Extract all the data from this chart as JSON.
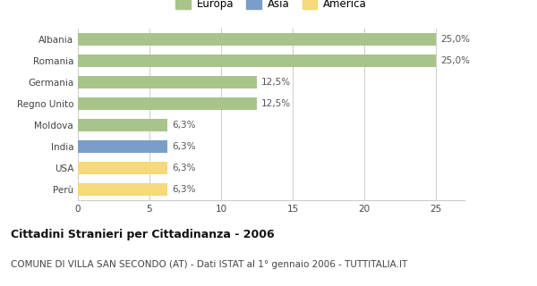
{
  "categories": [
    "Perù",
    "USA",
    "India",
    "Moldova",
    "Regno Unito",
    "Germania",
    "Romania",
    "Albania"
  ],
  "values": [
    6.25,
    6.25,
    6.25,
    6.25,
    12.5,
    12.5,
    25.0,
    25.0
  ],
  "bar_colors": [
    "#f5d97a",
    "#f5d97a",
    "#7b9ec9",
    "#a8c48a",
    "#a8c48a",
    "#a8c48a",
    "#a8c48a",
    "#a8c48a"
  ],
  "labels": [
    "6,3%",
    "6,3%",
    "6,3%",
    "6,3%",
    "12,5%",
    "12,5%",
    "25,0%",
    "25,0%"
  ],
  "legend": [
    {
      "label": "Europa",
      "color": "#a8c48a"
    },
    {
      "label": "Asia",
      "color": "#7b9ec9"
    },
    {
      "label": "America",
      "color": "#f5d97a"
    }
  ],
  "xlim": [
    0,
    27
  ],
  "xticks": [
    0,
    5,
    10,
    15,
    20,
    25
  ],
  "title": "Cittadini Stranieri per Cittadinanza - 2006",
  "subtitle": "COMUNE DI VILLA SAN SECONDO (AT) - Dati ISTAT al 1° gennaio 2006 - TUTTITALIA.IT",
  "title_fontsize": 9,
  "subtitle_fontsize": 7.5,
  "label_fontsize": 7.5,
  "tick_fontsize": 7.5,
  "legend_fontsize": 8.5,
  "background_color": "#ffffff",
  "grid_color": "#cccccc",
  "bar_height": 0.55
}
